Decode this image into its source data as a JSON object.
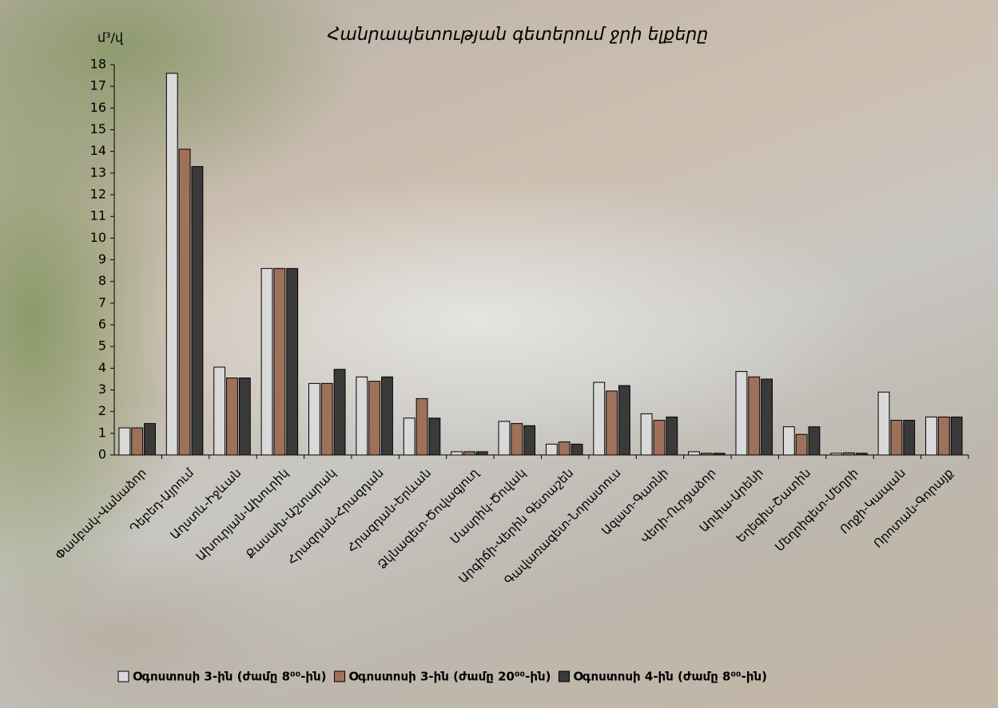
{
  "chart_data": {
    "type": "bar",
    "title": "Հանրապետության գետերում ջրի ելքերը",
    "y_label": "մ³/վ",
    "categories": [
      "Փամբակ-Վանաձոր",
      "Դեբեդ-Այրում",
      "Աղստև-Իջևան",
      "Ախուրյան-Ախուրիկ",
      "Քասախ-Աշտարակ",
      "Հրազդան-Հրազդան",
      "Հրազդան-Երևան",
      "Ձկնագետ-Ծովագյուղ",
      "Մասրիկ-Ծովակ",
      "Արգիճի-Վերին Գետաշեն",
      "Գավառագետ-Նորատուս",
      "Ազատ-Գառնի",
      "Վեդի-Ուրցաձոր",
      "Արփա-Արենի",
      "Եղեգիս-Շատին",
      "Մեղրիգետ-Մեղրի",
      "Ողջի-Կապան",
      "Որոտան-Գորայք"
    ],
    "series": [
      {
        "name": "Օգոստոսի 3-ին (ժամը 8⁰⁰-ին)",
        "color": "#d9d9d9",
        "values": [
          1.25,
          17.6,
          4.05,
          8.6,
          3.3,
          3.6,
          1.7,
          0.15,
          1.55,
          0.5,
          3.35,
          1.9,
          0.15,
          3.85,
          1.3,
          0.08,
          2.9,
          1.75
        ]
      },
      {
        "name": "Օգոստոսի 3-ին (ժամը 20⁰⁰-ին)",
        "color": "#a0715a",
        "values": [
          1.25,
          14.1,
          3.55,
          8.6,
          3.3,
          3.4,
          2.6,
          0.15,
          1.45,
          0.6,
          2.95,
          1.6,
          0.08,
          3.6,
          0.95,
          0.1,
          1.6,
          1.75
        ]
      },
      {
        "name": "Օգոստոսի 4-ին (ժամը 8⁰⁰-ին)",
        "color": "#3a3a3a",
        "values": [
          1.45,
          13.3,
          3.55,
          8.6,
          3.95,
          3.6,
          1.7,
          0.15,
          1.35,
          0.5,
          3.2,
          1.75,
          0.08,
          3.5,
          1.3,
          0.08,
          1.6,
          1.75
        ]
      }
    ],
    "ylim": [
      0,
      18
    ],
    "yticks": [
      0,
      1,
      2,
      3,
      4,
      5,
      6,
      7,
      8,
      9,
      10,
      11,
      12,
      13,
      14,
      15,
      16,
      17,
      18
    ],
    "grid": false,
    "legend": "bottom"
  }
}
